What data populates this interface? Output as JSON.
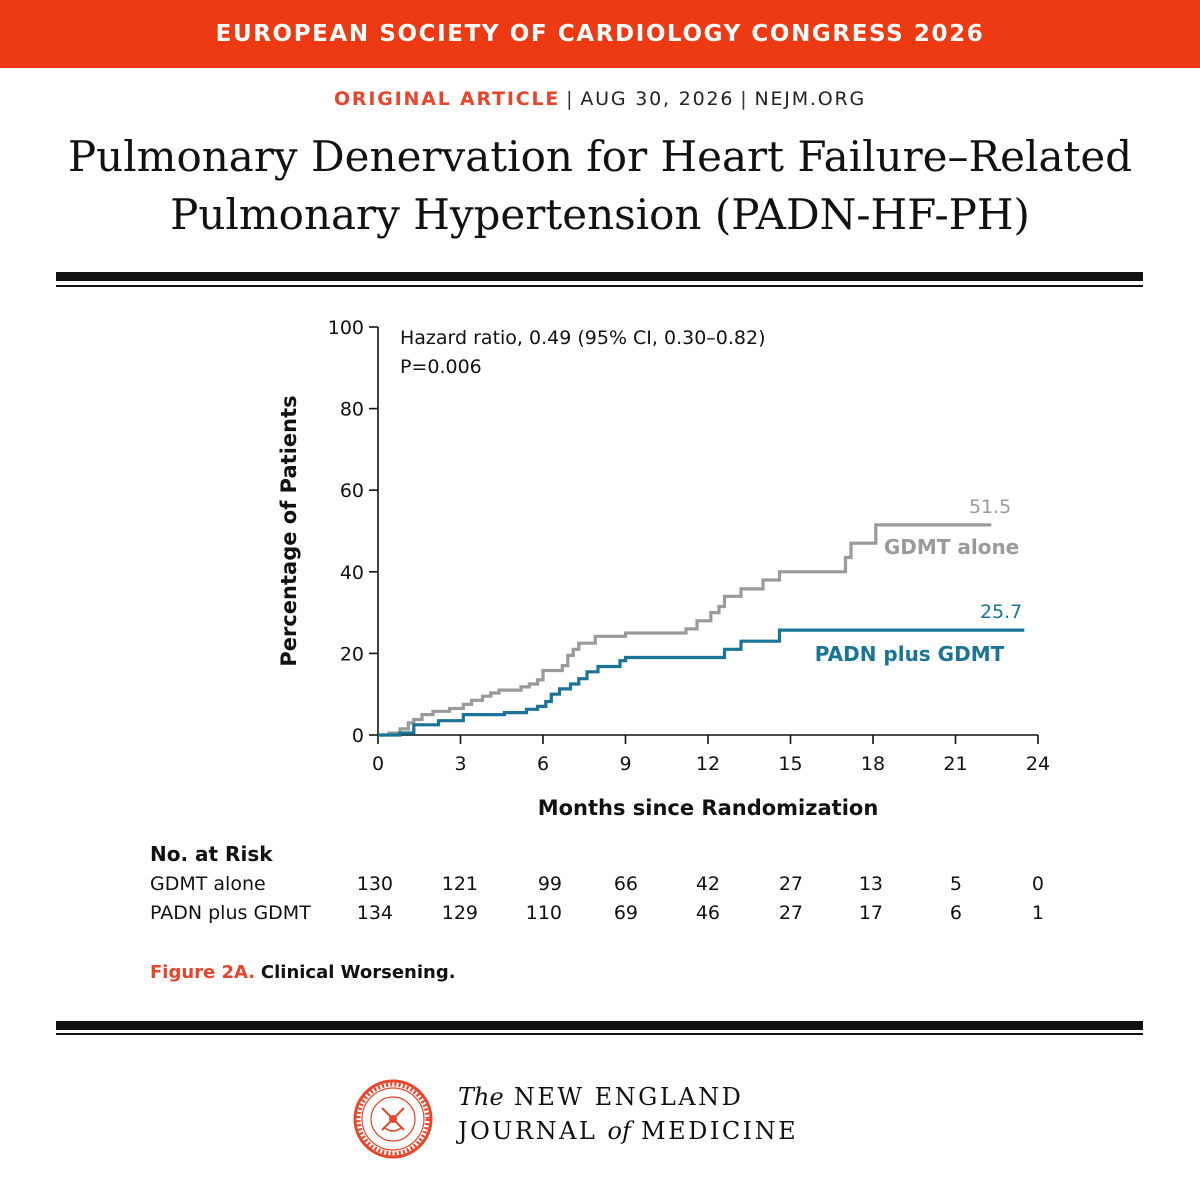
{
  "banner": {
    "text": "EUROPEAN SOCIETY OF CARDIOLOGY CONGRESS 2026"
  },
  "meta": {
    "category": "ORIGINAL ARTICLE",
    "date": "AUG 30, 2026",
    "site": "NEJM.ORG"
  },
  "article": {
    "title_line1": "Pulmonary Denervation for Heart Failure–Related",
    "title_line2": "Pulmonary Hypertension (PADN-HF-PH)"
  },
  "colors": {
    "banner": "#ee3a12",
    "accent": "#e8452a",
    "gdmt": "#9a9a9a",
    "padn": "#1a7497"
  },
  "chart_data": {
    "type": "line",
    "step": true,
    "annotation_line1": "Hazard ratio, 0.49 (95% CI, 0.30–0.82)",
    "annotation_line2": "P=0.006",
    "xlabel": "Months since Randomization",
    "ylabel": "Percentage of Patients",
    "xlim": [
      0,
      24
    ],
    "ylim": [
      0,
      100
    ],
    "xticks": [
      0,
      3,
      6,
      9,
      12,
      15,
      18,
      21,
      24
    ],
    "yticks": [
      0,
      20,
      40,
      60,
      80,
      100
    ],
    "grid": false,
    "series": [
      {
        "name": "GDMT alone",
        "color": "#9a9a9a",
        "end_label": "51.5",
        "points": [
          [
            0,
            0
          ],
          [
            0.4,
            0.5
          ],
          [
            0.8,
            1.5
          ],
          [
            1.1,
            3
          ],
          [
            1.3,
            3.8
          ],
          [
            1.6,
            5
          ],
          [
            2.0,
            5.8
          ],
          [
            2.6,
            6.5
          ],
          [
            3.1,
            7.5
          ],
          [
            3.4,
            8.5
          ],
          [
            3.8,
            9.5
          ],
          [
            4.1,
            10.3
          ],
          [
            4.4,
            11
          ],
          [
            5.2,
            11.8
          ],
          [
            5.5,
            12.5
          ],
          [
            5.8,
            13.5
          ],
          [
            6.0,
            15.8
          ],
          [
            6.7,
            17
          ],
          [
            6.9,
            19.5
          ],
          [
            7.1,
            21
          ],
          [
            7.3,
            22.5
          ],
          [
            7.9,
            24.2
          ],
          [
            9.0,
            25
          ],
          [
            11.2,
            26
          ],
          [
            11.6,
            28
          ],
          [
            12.1,
            30
          ],
          [
            12.4,
            31.5
          ],
          [
            12.6,
            34
          ],
          [
            13.2,
            35.8
          ],
          [
            14.0,
            38
          ],
          [
            14.6,
            40
          ],
          [
            17.0,
            43.5
          ],
          [
            17.2,
            47
          ],
          [
            18.1,
            51.5
          ],
          [
            22.3,
            51.5
          ]
        ]
      },
      {
        "name": "PADN plus GDMT",
        "color": "#1a7497",
        "end_label": "25.7",
        "points": [
          [
            0,
            0
          ],
          [
            0.8,
            0.5
          ],
          [
            1.3,
            2.5
          ],
          [
            2.2,
            3.5
          ],
          [
            3.1,
            5
          ],
          [
            4.6,
            5.5
          ],
          [
            5.4,
            6.3
          ],
          [
            5.8,
            7
          ],
          [
            6.1,
            8.2
          ],
          [
            6.3,
            10
          ],
          [
            6.6,
            11.3
          ],
          [
            7.0,
            12.5
          ],
          [
            7.3,
            13.8
          ],
          [
            7.6,
            15.5
          ],
          [
            8.0,
            16.8
          ],
          [
            8.8,
            18.2
          ],
          [
            9.0,
            19
          ],
          [
            12.6,
            21
          ],
          [
            13.2,
            23
          ],
          [
            14.6,
            25.7
          ],
          [
            23.5,
            25.7
          ]
        ]
      }
    ],
    "series_labels": {
      "gdmt": "GDMT alone",
      "padn": "PADN plus GDMT"
    }
  },
  "risk_table": {
    "heading": "No. at Risk",
    "rows": [
      {
        "label": "GDMT alone",
        "values": [
          "130",
          "121",
          "99",
          "66",
          "42",
          "27",
          "13",
          "5",
          "0"
        ]
      },
      {
        "label": "PADN plus GDMT",
        "values": [
          "134",
          "129",
          "110",
          "69",
          "46",
          "27",
          "17",
          "6",
          "1"
        ]
      }
    ]
  },
  "figure": {
    "label": "Figure 2A.",
    "caption": "Clinical Worsening."
  },
  "journal": {
    "the": "The",
    "line1_rest": "NEW ENGLAND",
    "line2_a": "JOURNAL",
    "line2_of": "of",
    "line2_b": "MEDICINE"
  }
}
